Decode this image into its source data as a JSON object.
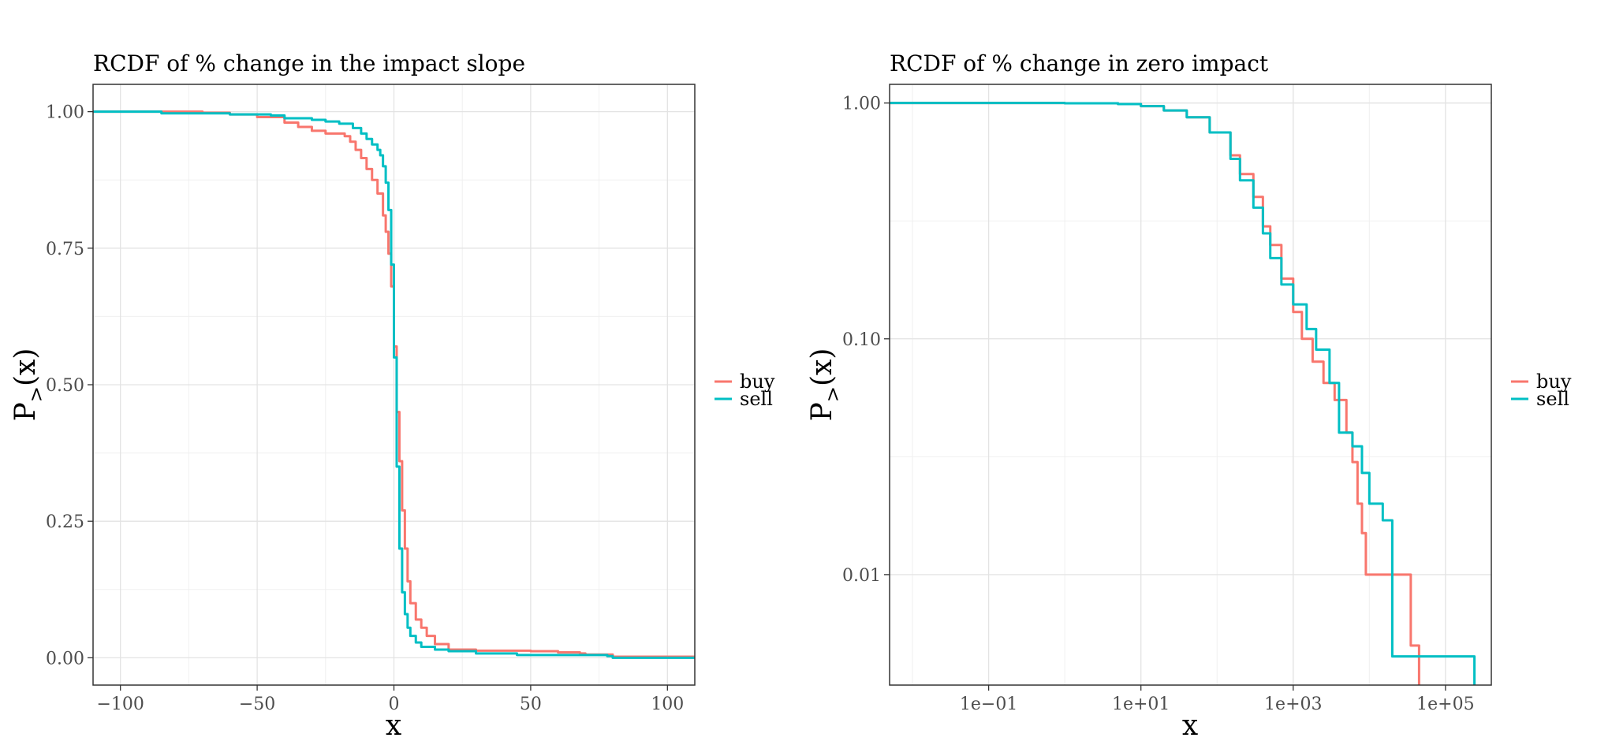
{
  "chart_data": [
    {
      "type": "line",
      "title": "RCDF of % change in the impact slope",
      "xlabel": "x",
      "ylabel": "P",
      "ylabel_sub": ">",
      "ylabel_tail": "(x)",
      "x_scale": "linear",
      "y_scale": "linear",
      "xlim": [
        -110,
        110
      ],
      "ylim": [
        -0.05,
        1.05
      ],
      "xticks": [
        -100,
        -50,
        0,
        50,
        100
      ],
      "xtick_labels": [
        "−100",
        "−50",
        "0",
        "50",
        "100"
      ],
      "yticks": [
        0,
        0.25,
        0.5,
        0.75,
        1
      ],
      "ytick_labels": [
        "0.00",
        "0.25",
        "0.50",
        "0.75",
        "1.00"
      ],
      "grid": true,
      "legend_position": "right",
      "series": [
        {
          "name": "buy",
          "color": "#F8766D",
          "points": [
            [
              -110,
              1.0
            ],
            [
              -87,
              1.0
            ],
            [
              -70,
              0.998
            ],
            [
              -60,
              0.995
            ],
            [
              -50,
              0.99
            ],
            [
              -40,
              0.98
            ],
            [
              -35,
              0.972
            ],
            [
              -30,
              0.965
            ],
            [
              -25,
              0.96
            ],
            [
              -18,
              0.955
            ],
            [
              -16,
              0.945
            ],
            [
              -14,
              0.93
            ],
            [
              -12,
              0.915
            ],
            [
              -10,
              0.895
            ],
            [
              -8,
              0.875
            ],
            [
              -6,
              0.85
            ],
            [
              -4,
              0.81
            ],
            [
              -3,
              0.78
            ],
            [
              -2,
              0.74
            ],
            [
              -1,
              0.68
            ],
            [
              0,
              0.57
            ],
            [
              1,
              0.45
            ],
            [
              2,
              0.36
            ],
            [
              3,
              0.27
            ],
            [
              4,
              0.2
            ],
            [
              5,
              0.14
            ],
            [
              6,
              0.1
            ],
            [
              8,
              0.07
            ],
            [
              10,
              0.055
            ],
            [
              12,
              0.04
            ],
            [
              15,
              0.025
            ],
            [
              20,
              0.015
            ],
            [
              30,
              0.013
            ],
            [
              50,
              0.012
            ],
            [
              60,
              0.01
            ],
            [
              68,
              0.008
            ],
            [
              70,
              0.006
            ],
            [
              80,
              0.002
            ],
            [
              110,
              0.0
            ]
          ]
        },
        {
          "name": "sell",
          "color": "#00BFC4",
          "points": [
            [
              -110,
              1.0
            ],
            [
              -85,
              0.997
            ],
            [
              -60,
              0.995
            ],
            [
              -45,
              0.993
            ],
            [
              -40,
              0.988
            ],
            [
              -30,
              0.985
            ],
            [
              -25,
              0.982
            ],
            [
              -20,
              0.978
            ],
            [
              -15,
              0.97
            ],
            [
              -12,
              0.96
            ],
            [
              -10,
              0.95
            ],
            [
              -8,
              0.94
            ],
            [
              -6,
              0.93
            ],
            [
              -5,
              0.92
            ],
            [
              -4,
              0.9
            ],
            [
              -3,
              0.87
            ],
            [
              -2,
              0.82
            ],
            [
              -1,
              0.72
            ],
            [
              0,
              0.55
            ],
            [
              1,
              0.35
            ],
            [
              2,
              0.2
            ],
            [
              3,
              0.12
            ],
            [
              4,
              0.08
            ],
            [
              5,
              0.055
            ],
            [
              6,
              0.04
            ],
            [
              8,
              0.028
            ],
            [
              10,
              0.02
            ],
            [
              15,
              0.015
            ],
            [
              20,
              0.012
            ],
            [
              30,
              0.008
            ],
            [
              45,
              0.005
            ],
            [
              78,
              0.003
            ],
            [
              80,
              0.0
            ],
            [
              110,
              0.0
            ]
          ]
        }
      ]
    },
    {
      "type": "line",
      "title": "RCDF of % change in zero impact",
      "xlabel": "x",
      "ylabel": "P",
      "ylabel_sub": ">",
      "ylabel_tail": "(x)",
      "x_scale": "log10",
      "y_scale": "log10",
      "xlim": [
        0.005,
        400000
      ],
      "ylim": [
        0.0034,
        1.2
      ],
      "xticks": [
        0.1,
        10,
        1000,
        100000
      ],
      "xtick_labels": [
        "1e−01",
        "1e+01",
        "1e+03",
        "1e+05"
      ],
      "yticks": [
        0.01,
        0.1,
        1
      ],
      "ytick_labels": [
        "0.01",
        "0.10",
        "1.00"
      ],
      "grid": true,
      "legend_position": "right",
      "series": [
        {
          "name": "buy",
          "color": "#F8766D",
          "points": [
            [
              0.005,
              1.0
            ],
            [
              1,
              0.998
            ],
            [
              5,
              0.99
            ],
            [
              10,
              0.97
            ],
            [
              20,
              0.93
            ],
            [
              40,
              0.87
            ],
            [
              80,
              0.75
            ],
            [
              150,
              0.6
            ],
            [
              200,
              0.5
            ],
            [
              300,
              0.4
            ],
            [
              400,
              0.3
            ],
            [
              500,
              0.25
            ],
            [
              700,
              0.18
            ],
            [
              1000,
              0.13
            ],
            [
              1300,
              0.1
            ],
            [
              1800,
              0.08
            ],
            [
              2500,
              0.065
            ],
            [
              3500,
              0.055
            ],
            [
              5000,
              0.04
            ],
            [
              6000,
              0.03
            ],
            [
              7000,
              0.02
            ],
            [
              8000,
              0.015
            ],
            [
              9000,
              0.01
            ],
            [
              30000,
              0.01
            ],
            [
              35000,
              0.005
            ],
            [
              45000,
              0.005
            ],
            [
              45000,
              0.0034
            ]
          ]
        },
        {
          "name": "sell",
          "color": "#00BFC4",
          "points": [
            [
              0.005,
              1.0
            ],
            [
              1,
              0.998
            ],
            [
              5,
              0.99
            ],
            [
              10,
              0.97
            ],
            [
              20,
              0.93
            ],
            [
              40,
              0.87
            ],
            [
              80,
              0.75
            ],
            [
              150,
              0.58
            ],
            [
              200,
              0.47
            ],
            [
              300,
              0.36
            ],
            [
              400,
              0.28
            ],
            [
              500,
              0.22
            ],
            [
              700,
              0.17
            ],
            [
              1000,
              0.14
            ],
            [
              1500,
              0.11
            ],
            [
              2000,
              0.09
            ],
            [
              3000,
              0.065
            ],
            [
              4000,
              0.04
            ],
            [
              6000,
              0.035
            ],
            [
              8000,
              0.027
            ],
            [
              10000,
              0.02
            ],
            [
              15000,
              0.017
            ],
            [
              20000,
              0.0045
            ],
            [
              240000,
              0.0045
            ],
            [
              240000,
              0.0034
            ]
          ]
        }
      ]
    }
  ]
}
